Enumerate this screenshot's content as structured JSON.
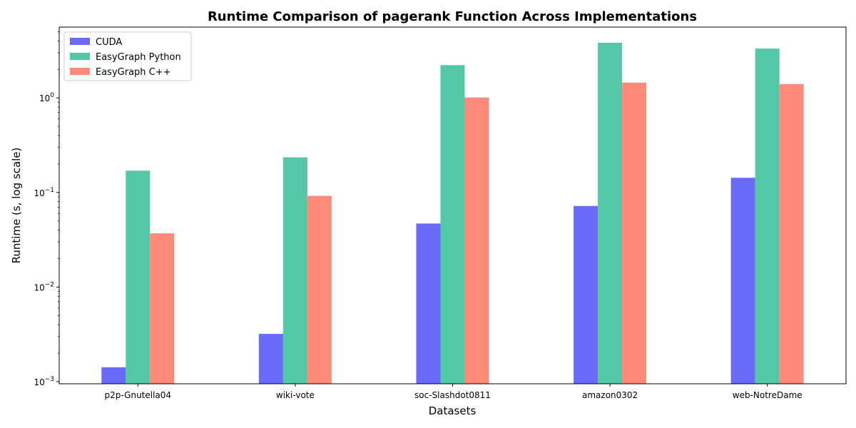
{
  "chart_data": {
    "type": "bar",
    "title": "Runtime Comparison of pagerank Function Across Implementations",
    "xlabel": "Datasets",
    "ylabel": "Runtime (s, log scale)",
    "yscale": "log",
    "ylim": [
      0.00095,
      5.6
    ],
    "yticks": [
      {
        "value": 0.001,
        "base": "10",
        "exp": "−3"
      },
      {
        "value": 0.01,
        "base": "10",
        "exp": "−2"
      },
      {
        "value": 0.1,
        "base": "10",
        "exp": "−1"
      },
      {
        "value": 1,
        "base": "10",
        "exp": "0"
      }
    ],
    "categories": [
      "p2p-Gnutella04",
      "wiki-vote",
      "soc-Slashdot0811",
      "amazon0302",
      "web-NotreDame"
    ],
    "series": [
      {
        "name": "CUDA",
        "color": "#6b6bfa",
        "values": [
          0.00142,
          0.0032,
          0.047,
          0.072,
          0.143
        ]
      },
      {
        "name": "EasyGraph Python",
        "color": "#53c7a6",
        "values": [
          0.17,
          0.235,
          2.22,
          3.82,
          3.32
        ]
      },
      {
        "name": "EasyGraph C++",
        "color": "#fe8b7a",
        "values": [
          0.037,
          0.092,
          1.01,
          1.45,
          1.4
        ]
      }
    ],
    "grid": false,
    "legend_position": "top-left"
  }
}
